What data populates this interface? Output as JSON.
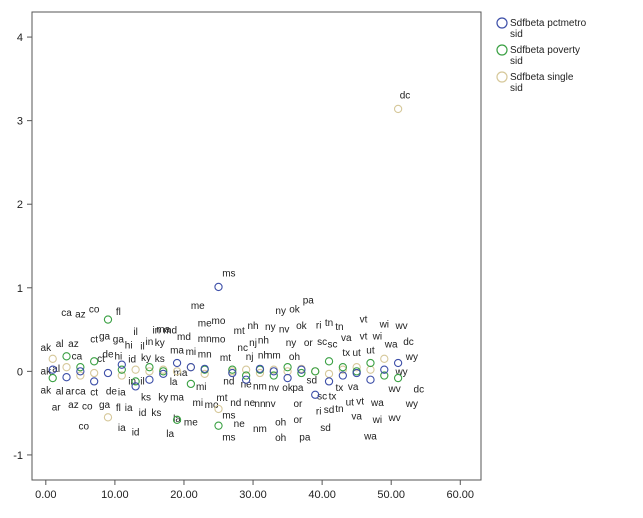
{
  "chart_data": {
    "type": "scatter",
    "title": "",
    "xlabel": "",
    "ylabel": "",
    "xlim": [
      -2,
      63
    ],
    "ylim": [
      -1.3,
      4.3
    ],
    "x_ticks": [
      "0.00",
      "10.00",
      "20.00",
      "30.00",
      "40.00",
      "50.00",
      "60.00"
    ],
    "x_tick_values": [
      0,
      10,
      20,
      30,
      40,
      50,
      60
    ],
    "y_ticks": [
      "-1",
      "0",
      "1",
      "2",
      "3",
      "4"
    ],
    "y_tick_values": [
      -1,
      0,
      1,
      2,
      3,
      4
    ],
    "grid": false,
    "legend_position": "right-top",
    "series": [
      {
        "name": "Sdfbeta pctmetro sid",
        "name_lines": [
          "Sdfbeta pctmetro",
          "sid"
        ],
        "color": "#3d4fa8",
        "points": [
          {
            "x": 1,
            "y": 0.02
          },
          {
            "x": 3,
            "y": -0.07
          },
          {
            "x": 5,
            "y": 0.0
          },
          {
            "x": 7,
            "y": -0.12
          },
          {
            "x": 9,
            "y": -0.02
          },
          {
            "x": 11,
            "y": 0.08
          },
          {
            "x": 13,
            "y": -0.18
          },
          {
            "x": 15,
            "y": -0.1
          },
          {
            "x": 17,
            "y": -0.03
          },
          {
            "x": 19,
            "y": 0.1
          },
          {
            "x": 21,
            "y": 0.05
          },
          {
            "x": 23,
            "y": 0.03
          },
          {
            "x": 25,
            "y": 1.01
          },
          {
            "x": 27,
            "y": -0.02
          },
          {
            "x": 29,
            "y": -0.1
          },
          {
            "x": 31,
            "y": 0.03
          },
          {
            "x": 33,
            "y": 0.0
          },
          {
            "x": 35,
            "y": -0.08
          },
          {
            "x": 37,
            "y": 0.02
          },
          {
            "x": 39,
            "y": -0.28
          },
          {
            "x": 41,
            "y": -0.12
          },
          {
            "x": 43,
            "y": -0.05
          },
          {
            "x": 45,
            "y": -0.02
          },
          {
            "x": 47,
            "y": -0.1
          },
          {
            "x": 49,
            "y": 0.02
          },
          {
            "x": 51,
            "y": 0.1
          }
        ]
      },
      {
        "name": "Sdfbeta poverty sid",
        "name_lines": [
          "Sdfbeta poverty",
          "sid"
        ],
        "color": "#3aa043",
        "points": [
          {
            "x": 1,
            "y": -0.08
          },
          {
            "x": 3,
            "y": 0.18
          },
          {
            "x": 5,
            "y": 0.05
          },
          {
            "x": 7,
            "y": 0.12
          },
          {
            "x": 9,
            "y": 0.62
          },
          {
            "x": 11,
            "y": 0.02
          },
          {
            "x": 13,
            "y": -0.12
          },
          {
            "x": 15,
            "y": 0.05
          },
          {
            "x": 17,
            "y": 0.0
          },
          {
            "x": 19,
            "y": -0.58
          },
          {
            "x": 21,
            "y": -0.15
          },
          {
            "x": 23,
            "y": 0.02
          },
          {
            "x": 25,
            "y": -0.65
          },
          {
            "x": 27,
            "y": 0.02
          },
          {
            "x": 29,
            "y": -0.05
          },
          {
            "x": 31,
            "y": 0.02
          },
          {
            "x": 33,
            "y": -0.05
          },
          {
            "x": 35,
            "y": 0.05
          },
          {
            "x": 37,
            "y": -0.02
          },
          {
            "x": 39,
            "y": 0.0
          },
          {
            "x": 41,
            "y": 0.12
          },
          {
            "x": 43,
            "y": 0.05
          },
          {
            "x": 45,
            "y": 0.0
          },
          {
            "x": 47,
            "y": 0.1
          },
          {
            "x": 49,
            "y": -0.05
          },
          {
            "x": 51,
            "y": -0.08
          }
        ]
      },
      {
        "name": "Sdfbeta single sid",
        "name_lines": [
          "Sdfbeta single",
          "sid"
        ],
        "color": "#d6c89a",
        "points": [
          {
            "x": 1,
            "y": 0.15
          },
          {
            "x": 3,
            "y": 0.05
          },
          {
            "x": 5,
            "y": -0.05
          },
          {
            "x": 7,
            "y": -0.02
          },
          {
            "x": 9,
            "y": -0.55
          },
          {
            "x": 11,
            "y": -0.05
          },
          {
            "x": 13,
            "y": 0.02
          },
          {
            "x": 15,
            "y": 0.0
          },
          {
            "x": 17,
            "y": 0.02
          },
          {
            "x": 19,
            "y": 0.0
          },
          {
            "x": 21,
            "y": 0.05
          },
          {
            "x": 23,
            "y": -0.03
          },
          {
            "x": 25,
            "y": -0.45
          },
          {
            "x": 27,
            "y": 0.0
          },
          {
            "x": 29,
            "y": 0.02
          },
          {
            "x": 31,
            "y": -0.02
          },
          {
            "x": 33,
            "y": 0.02
          },
          {
            "x": 35,
            "y": 0.0
          },
          {
            "x": 37,
            "y": 0.03
          },
          {
            "x": 39,
            "y": 0.0
          },
          {
            "x": 41,
            "y": -0.03
          },
          {
            "x": 43,
            "y": 0.02
          },
          {
            "x": 45,
            "y": 0.05
          },
          {
            "x": 47,
            "y": 0.02
          },
          {
            "x": 49,
            "y": 0.15
          },
          {
            "x": 51,
            "y": 3.14
          }
        ]
      }
    ],
    "point_labels": [
      {
        "t": "ca",
        "x": 3,
        "y": 0.7
      },
      {
        "t": "az",
        "x": 5,
        "y": 0.68
      },
      {
        "t": "co",
        "x": 7,
        "y": 0.74
      },
      {
        "t": "fl",
        "x": 10.5,
        "y": 0.71
      },
      {
        "t": "me",
        "x": 22,
        "y": 0.78
      },
      {
        "t": "ms",
        "x": 26.5,
        "y": 1.17
      },
      {
        "t": "ny",
        "x": 34,
        "y": 0.72
      },
      {
        "t": "ok",
        "x": 36,
        "y": 0.74
      },
      {
        "t": "pa",
        "x": 38,
        "y": 0.85
      },
      {
        "t": "dc",
        "x": 52,
        "y": 3.3
      },
      {
        "t": "vt",
        "x": 46,
        "y": 0.62
      },
      {
        "t": "wi",
        "x": 49,
        "y": 0.56
      },
      {
        "t": "wv",
        "x": 51.5,
        "y": 0.54
      },
      {
        "t": "ma",
        "x": 17,
        "y": 0.5
      },
      {
        "t": "me",
        "x": 23,
        "y": 0.57
      },
      {
        "t": "mo",
        "x": 25,
        "y": 0.6
      },
      {
        "t": "mt",
        "x": 28,
        "y": 0.48
      },
      {
        "t": "nh",
        "x": 30,
        "y": 0.54
      },
      {
        "t": "ny",
        "x": 32.5,
        "y": 0.53
      },
      {
        "t": "nv",
        "x": 34.5,
        "y": 0.5
      },
      {
        "t": "ok",
        "x": 37,
        "y": 0.54
      },
      {
        "t": "ri",
        "x": 39.5,
        "y": 0.55
      },
      {
        "t": "tn",
        "x": 41,
        "y": 0.58
      },
      {
        "t": "tn",
        "x": 42.5,
        "y": 0.53
      },
      {
        "t": "il",
        "x": 13,
        "y": 0.47
      },
      {
        "t": "in",
        "x": 16,
        "y": 0.49
      },
      {
        "t": "md",
        "x": 18,
        "y": 0.49
      },
      {
        "t": "ga",
        "x": 8.5,
        "y": 0.42
      },
      {
        "t": "ga",
        "x": 10.5,
        "y": 0.38
      },
      {
        "t": "ct",
        "x": 7,
        "y": 0.38
      },
      {
        "t": "hi",
        "x": 12,
        "y": 0.31
      },
      {
        "t": "il",
        "x": 14,
        "y": 0.3
      },
      {
        "t": "ky",
        "x": 16.5,
        "y": 0.34
      },
      {
        "t": "md",
        "x": 20,
        "y": 0.41
      },
      {
        "t": "mn",
        "x": 23,
        "y": 0.39
      },
      {
        "t": "mo",
        "x": 25,
        "y": 0.38
      },
      {
        "t": "nc",
        "x": 28.5,
        "y": 0.28
      },
      {
        "t": "nj",
        "x": 30,
        "y": 0.34
      },
      {
        "t": "nh",
        "x": 31.5,
        "y": 0.37
      },
      {
        "t": "ny",
        "x": 35.5,
        "y": 0.34
      },
      {
        "t": "or",
        "x": 38,
        "y": 0.34
      },
      {
        "t": "sc",
        "x": 40,
        "y": 0.35
      },
      {
        "t": "sc",
        "x": 41.5,
        "y": 0.32
      },
      {
        "t": "va",
        "x": 43.5,
        "y": 0.4
      },
      {
        "t": "vt",
        "x": 46,
        "y": 0.42
      },
      {
        "t": "wi",
        "x": 48,
        "y": 0.42
      },
      {
        "t": "wa",
        "x": 50,
        "y": 0.32
      },
      {
        "t": "dc",
        "x": 52.5,
        "y": 0.35
      },
      {
        "t": "ak",
        "x": 0,
        "y": 0.28
      },
      {
        "t": "al",
        "x": 2,
        "y": 0.33
      },
      {
        "t": "az",
        "x": 4,
        "y": 0.33
      },
      {
        "t": "in",
        "x": 15,
        "y": 0.35
      },
      {
        "t": "de",
        "x": 9,
        "y": 0.2
      },
      {
        "t": "hi",
        "x": 10.5,
        "y": 0.18
      },
      {
        "t": "id",
        "x": 12.5,
        "y": 0.14
      },
      {
        "t": "ky",
        "x": 14.5,
        "y": 0.16
      },
      {
        "t": "ks",
        "x": 16.5,
        "y": 0.15
      },
      {
        "t": "ma",
        "x": 19,
        "y": 0.25
      },
      {
        "t": "mi",
        "x": 21,
        "y": 0.23
      },
      {
        "t": "mn",
        "x": 23,
        "y": 0.2
      },
      {
        "t": "mt",
        "x": 26,
        "y": 0.16
      },
      {
        "t": "nj",
        "x": 29.5,
        "y": 0.17
      },
      {
        "t": "nh",
        "x": 31.5,
        "y": 0.19
      },
      {
        "t": "nm",
        "x": 33,
        "y": 0.19
      },
      {
        "t": "oh",
        "x": 36,
        "y": 0.17
      },
      {
        "t": "tx",
        "x": 43.5,
        "y": 0.22
      },
      {
        "t": "ut",
        "x": 45,
        "y": 0.22
      },
      {
        "t": "ut",
        "x": 47,
        "y": 0.25
      },
      {
        "t": "wy",
        "x": 53,
        "y": 0.17
      },
      {
        "t": "ca",
        "x": 4.5,
        "y": 0.18
      },
      {
        "t": "ct",
        "x": 8,
        "y": 0.15
      },
      {
        "t": "ak",
        "x": 0,
        "y": 0.0
      },
      {
        "t": "al",
        "x": 1.5,
        "y": 0.03
      },
      {
        "t": "ma",
        "x": 19.5,
        "y": -0.02
      },
      {
        "t": "wy",
        "x": 51.5,
        "y": -0.01
      },
      {
        "t": "in",
        "x": 12.5,
        "y": -0.12
      },
      {
        "t": "il",
        "x": 14,
        "y": -0.12
      },
      {
        "t": "la",
        "x": 18.5,
        "y": -0.13
      },
      {
        "t": "nd",
        "x": 26.5,
        "y": -0.12
      },
      {
        "t": "ne",
        "x": 29,
        "y": -0.16
      },
      {
        "t": "nm",
        "x": 31,
        "y": -0.18
      },
      {
        "t": "nv",
        "x": 33,
        "y": -0.2
      },
      {
        "t": "ok",
        "x": 35,
        "y": -0.2
      },
      {
        "t": "pa",
        "x": 36.5,
        "y": -0.2
      },
      {
        "t": "sd",
        "x": 38.5,
        "y": -0.11
      },
      {
        "t": "tx",
        "x": 42.5,
        "y": -0.2
      },
      {
        "t": "va",
        "x": 44.5,
        "y": -0.19
      },
      {
        "t": "mi",
        "x": 22.5,
        "y": -0.19
      },
      {
        "t": "wv",
        "x": 50.5,
        "y": -0.21
      },
      {
        "t": "dc",
        "x": 54,
        "y": -0.22
      },
      {
        "t": "ak",
        "x": 0,
        "y": -0.23
      },
      {
        "t": "al",
        "x": 2,
        "y": -0.24
      },
      {
        "t": "ar",
        "x": 3.5,
        "y": -0.24
      },
      {
        "t": "ca",
        "x": 5,
        "y": -0.24
      },
      {
        "t": "ct",
        "x": 7,
        "y": -0.25
      },
      {
        "t": "de",
        "x": 9.5,
        "y": -0.24
      },
      {
        "t": "ia",
        "x": 11,
        "y": -0.25
      },
      {
        "t": "ks",
        "x": 14.5,
        "y": -0.31
      },
      {
        "t": "ky",
        "x": 17,
        "y": -0.31
      },
      {
        "t": "ma",
        "x": 19,
        "y": -0.31
      },
      {
        "t": "mt",
        "x": 25.5,
        "y": -0.32
      },
      {
        "t": "sc",
        "x": 40,
        "y": -0.3
      },
      {
        "t": "tx",
        "x": 41.5,
        "y": -0.3
      },
      {
        "t": "ar",
        "x": 1.5,
        "y": -0.43
      },
      {
        "t": "az",
        "x": 4,
        "y": -0.4
      },
      {
        "t": "co",
        "x": 6,
        "y": -0.42
      },
      {
        "t": "ga",
        "x": 8.5,
        "y": -0.4
      },
      {
        "t": "fl",
        "x": 10.5,
        "y": -0.44
      },
      {
        "t": "ia",
        "x": 12,
        "y": -0.44
      },
      {
        "t": "mi",
        "x": 22,
        "y": -0.38
      },
      {
        "t": "mo",
        "x": 24,
        "y": -0.4
      },
      {
        "t": "nd",
        "x": 27.5,
        "y": -0.38
      },
      {
        "t": "ne",
        "x": 29.5,
        "y": -0.38
      },
      {
        "t": "nn",
        "x": 31,
        "y": -0.39
      },
      {
        "t": "nv",
        "x": 32.5,
        "y": -0.39
      },
      {
        "t": "or",
        "x": 36.5,
        "y": -0.39
      },
      {
        "t": "ut",
        "x": 44,
        "y": -0.37
      },
      {
        "t": "vt",
        "x": 45.5,
        "y": -0.36
      },
      {
        "t": "wa",
        "x": 48,
        "y": -0.38
      },
      {
        "t": "wy",
        "x": 53,
        "y": -0.39
      },
      {
        "t": "id",
        "x": 14,
        "y": -0.5
      },
      {
        "t": "ks",
        "x": 16,
        "y": -0.5
      },
      {
        "t": "ms",
        "x": 26.5,
        "y": -0.53
      },
      {
        "t": "ri",
        "x": 39.5,
        "y": -0.48
      },
      {
        "t": "sd",
        "x": 41,
        "y": -0.46
      },
      {
        "t": "tn",
        "x": 42.5,
        "y": -0.45
      },
      {
        "t": "va",
        "x": 45,
        "y": -0.54
      },
      {
        "t": "wi",
        "x": 48,
        "y": -0.58
      },
      {
        "t": "wv",
        "x": 50.5,
        "y": -0.56
      },
      {
        "t": "la",
        "x": 19,
        "y": -0.57
      },
      {
        "t": "me",
        "x": 21,
        "y": -0.61
      },
      {
        "t": "ne",
        "x": 28,
        "y": -0.63
      },
      {
        "t": "oh",
        "x": 34,
        "y": -0.61
      },
      {
        "t": "or",
        "x": 36.5,
        "y": -0.58
      },
      {
        "t": "co",
        "x": 5.5,
        "y": -0.66
      },
      {
        "t": "ia",
        "x": 11,
        "y": -0.68
      },
      {
        "t": "nm",
        "x": 31,
        "y": -0.69
      },
      {
        "t": "sd",
        "x": 40.5,
        "y": -0.68
      },
      {
        "t": "id",
        "x": 13,
        "y": -0.73
      },
      {
        "t": "la",
        "x": 18,
        "y": -0.75
      },
      {
        "t": "ms",
        "x": 26.5,
        "y": -0.79
      },
      {
        "t": "oh",
        "x": 34,
        "y": -0.8
      },
      {
        "t": "pa",
        "x": 37.5,
        "y": -0.79
      },
      {
        "t": "wa",
        "x": 47,
        "y": -0.78
      }
    ]
  }
}
